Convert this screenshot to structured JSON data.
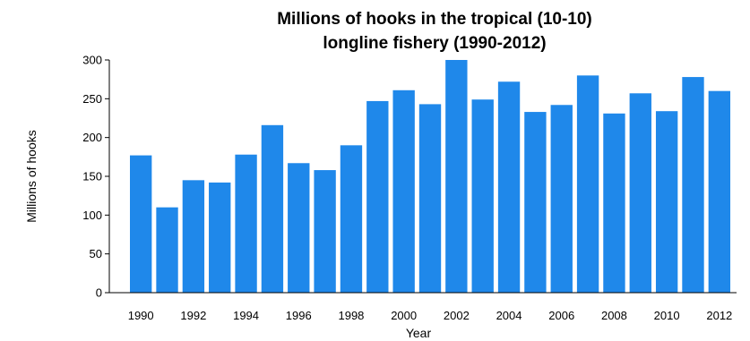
{
  "chart_data": {
    "type": "bar",
    "title": [
      "Millions of hooks in the tropical (10-10)",
      "longline fishery (1990-2012)"
    ],
    "xlabel": "Year",
    "ylabel": "Millions of hooks",
    "ylim": [
      0,
      300
    ],
    "yticks": [
      0,
      50,
      100,
      150,
      200,
      250,
      300
    ],
    "grid": false,
    "legend": "none",
    "bar_color": "#1F88EA",
    "categories": [
      "1990",
      "1991",
      "1992",
      "1993",
      "1994",
      "1995",
      "1996",
      "1997",
      "1998",
      "1999",
      "2000",
      "2001",
      "2002",
      "2003",
      "2004",
      "2005",
      "2006",
      "2007",
      "2008",
      "2009",
      "2010",
      "2011",
      "2012"
    ],
    "xtick_labels": [
      "1990",
      "1992",
      "1994",
      "1996",
      "1998",
      "2000",
      "2002",
      "2004",
      "2006",
      "2008",
      "2010",
      "2012"
    ],
    "values": [
      177,
      110,
      145,
      142,
      178,
      216,
      167,
      158,
      190,
      247,
      261,
      243,
      300,
      249,
      272,
      233,
      242,
      280,
      231,
      257,
      234,
      278,
      260
    ]
  }
}
